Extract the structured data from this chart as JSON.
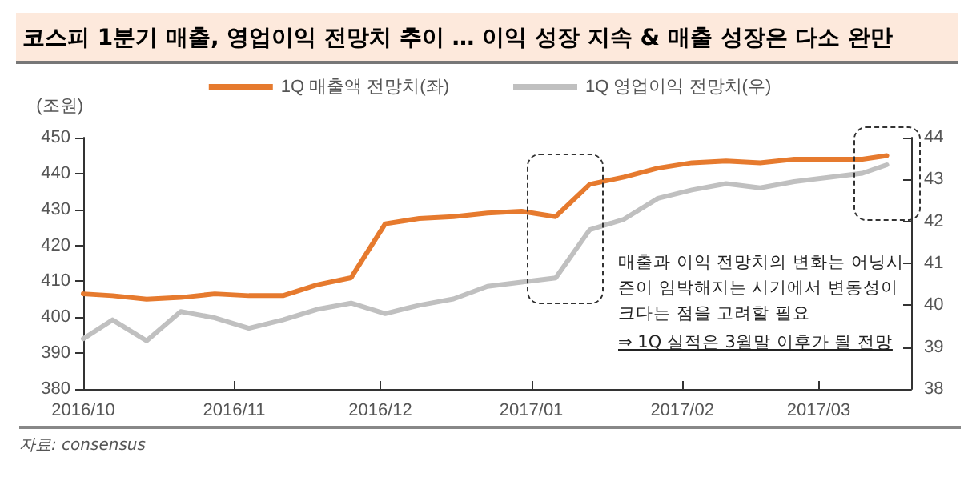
{
  "chart_data": {
    "type": "line",
    "title": "코스피 1분기 매출, 영업이익 전망치 추이 … 이익 성장 지속 & 매출 성장은 다소 완만",
    "ylabel": "(조원)",
    "x": [
      "2016-10-01",
      "2016-10-07",
      "2016-10-14",
      "2016-10-21",
      "2016-10-28",
      "2016-11-04",
      "2016-11-11",
      "2016-11-18",
      "2016-11-25",
      "2016-12-02",
      "2016-12-09",
      "2016-12-16",
      "2016-12-23",
      "2016-12-30",
      "2017-01-06",
      "2017-01-13",
      "2017-01-20",
      "2017-01-27",
      "2017-02-03",
      "2017-02-10",
      "2017-02-17",
      "2017-02-24",
      "2017-03-03",
      "2017-03-10",
      "2017-03-15"
    ],
    "series": [
      {
        "name": "1Q 매출액 전망치(좌)",
        "color": "#e67a2e",
        "values": [
          406.5,
          406,
          405,
          405.5,
          406.5,
          406,
          406,
          409,
          411,
          426,
          427.5,
          428,
          429,
          429.5,
          428,
          437,
          439,
          441.5,
          443,
          443.5,
          443,
          444,
          444,
          444,
          445
        ]
      },
      {
        "name": "1Q 영업이익 전망치(우)",
        "color": "#c0c0c0",
        "axis": "y2",
        "values": [
          39.2,
          39.65,
          39.15,
          39.85,
          39.7,
          39.45,
          39.65,
          39.9,
          40.05,
          39.8,
          40,
          40.15,
          40.45,
          40.55,
          40.65,
          41.8,
          42.05,
          42.55,
          42.75,
          42.9,
          42.8,
          42.95,
          43.05,
          43.15,
          43.35
        ]
      }
    ],
    "xlim": [
      "2016-10-01",
      "2017-03-20"
    ],
    "xticks": [
      {
        "value": "2016-10-01",
        "label": "2016/10"
      },
      {
        "value": "2016-11-01",
        "label": "2016/11"
      },
      {
        "value": "2016-12-01",
        "label": "2016/12"
      },
      {
        "value": "2017-01-01",
        "label": "2017/01"
      },
      {
        "value": "2017-02-01",
        "label": "2017/02"
      },
      {
        "value": "2017-03-01",
        "label": "2017/03"
      }
    ],
    "ylim": [
      380,
      450
    ],
    "yticks": [
      380,
      390,
      400,
      410,
      420,
      430,
      440,
      450
    ],
    "y2lim": [
      38,
      44
    ],
    "y2ticks": [
      38,
      39,
      40,
      41,
      42,
      43,
      44
    ],
    "annotations": [
      "매출과 이익 전망치의 변화는 어닝시즌이 임박해지는 시기에서 변동성이 크다는 점을 고려할 필요",
      "⇒ 1Q 실적은 3월말 이후가 될 전망",
      "자료: consensus"
    ],
    "legend": "top",
    "marker": "none",
    "line_style": "solid",
    "grid": false
  }
}
